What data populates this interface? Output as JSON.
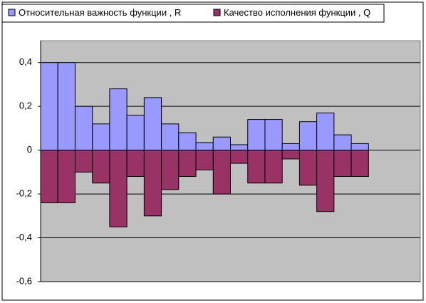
{
  "chart_data": {
    "type": "bar",
    "categories": [
      null,
      null,
      null,
      null,
      null,
      null,
      null,
      null,
      null,
      null,
      null,
      null,
      null,
      null,
      null,
      null,
      null,
      null,
      null,
      null,
      null,
      null
    ],
    "series": [
      {
        "name": "Относительная важность функции , R",
        "color": "#9999ff",
        "values": [
          0.4,
          0.4,
          0.2,
          0.12,
          0.28,
          0.16,
          0.24,
          0.12,
          0.08,
          0.035,
          0.06,
          0.025,
          0.14,
          0.14,
          0.03,
          0.13,
          0.17,
          0.07,
          0.03,
          null,
          null,
          null
        ]
      },
      {
        "name": "Качество исполнения функции , Q",
        "color": "#993366",
        "values": [
          -0.24,
          -0.24,
          -0.1,
          -0.15,
          -0.35,
          -0.12,
          -0.3,
          -0.18,
          -0.12,
          -0.09,
          -0.2,
          -0.06,
          -0.15,
          -0.15,
          -0.04,
          -0.16,
          -0.28,
          -0.12,
          -0.12,
          null,
          null,
          null
        ]
      }
    ],
    "ylim": [
      -0.6,
      0.5
    ],
    "yticks": [
      {
        "value": -0.6,
        "label": "-0,6"
      },
      {
        "value": -0.4,
        "label": "-0,4"
      },
      {
        "value": -0.2,
        "label": "-0,2"
      },
      0,
      {
        "value": 0.2,
        "label": "0,2"
      },
      {
        "value": 0.4,
        "label": "0,4"
      }
    ],
    "grid": true,
    "legend": "top"
  }
}
